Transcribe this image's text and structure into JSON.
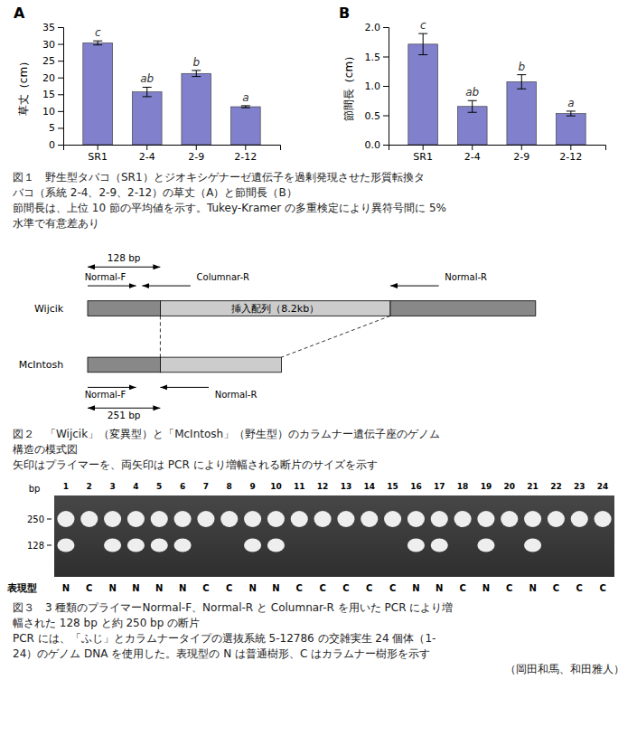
{
  "chart_data": [
    {
      "type": "bar",
      "title": "A",
      "ylabel": "草丈（cm）",
      "categories": [
        "SR1",
        "2-4",
        "2-9",
        "2-12"
      ],
      "values": [
        30.3,
        15.7,
        21.2,
        11.3
      ],
      "errors": [
        0.6,
        1.4,
        0.9,
        0.3
      ],
      "annotations": [
        "c",
        "ab",
        "b",
        "a"
      ],
      "color": "#8080cc",
      "ylim": [
        0,
        35
      ],
      "yticks": [
        0,
        5,
        10,
        15,
        20,
        25,
        30,
        35
      ],
      "caption": [
        "図１　野生型タバコ（SR1）とジオキシゲナーゼ遺伝子を過剰発現させた形質転換タ",
        "バコ（系統 2-4、2-9、2-12）の草丈（A）と節間長（B）",
        "節間長は、上位 10 節の平均値を示す。Tukey-Kramer の多重検定により異符号間に 5%",
        "水準で有意差あり"
      ]
    },
    {
      "type": "bar",
      "title": "B",
      "ylabel": "節間長（cm）",
      "categories": [
        "SR1",
        "2-4",
        "2-9",
        "2-12"
      ],
      "values": [
        1.71,
        0.65,
        1.07,
        0.53
      ],
      "errors": [
        0.18,
        0.1,
        0.12,
        0.04
      ],
      "annotations": [
        "c",
        "ab",
        "b",
        "a"
      ],
      "color": "#8080cc",
      "ylim": [
        0,
        2.0
      ],
      "yticks": [
        {
          "value": 0,
          "label": "0.0"
        },
        0.5,
        {
          "value": 1.0,
          "label": "1.0"
        },
        1.5,
        {
          "value": 2.0,
          "label": "2.0"
        }
      ]
    },
    {
      "type": "diagram",
      "rows": [
        "Wijcik",
        "McIntosh"
      ],
      "annotations": [
        "挿入配列（8.2kb）"
      ],
      "primers": [
        "Normal-F",
        "Columnar-R",
        "Normal-R"
      ],
      "fragments": [
        "128 bp",
        "251 bp"
      ],
      "colors": [
        "#888888",
        "#cccccc"
      ],
      "caption": [
        "図２　「Wijcik」（変異型）と「McIntosh」（野生型）のカラムナー遺伝子座のゲノム",
        "構造の模式図",
        "矢印はプライマーを、両矢印は PCR により増幅される断片のサイズを示す"
      ]
    },
    {
      "type": "gel",
      "categories": [
        "1",
        "2",
        "3",
        "4",
        "5",
        "6",
        "7",
        "8",
        "9",
        "10",
        "11",
        "12",
        "13",
        "14",
        "15",
        "16",
        "17",
        "18",
        "19",
        "20",
        "21",
        "22",
        "23",
        "24"
      ],
      "phenotypes": [
        "N",
        "C",
        "N",
        "N",
        "N",
        "N",
        "C",
        "C",
        "N",
        "N",
        "C",
        "C",
        "C",
        "C",
        "C",
        "N",
        "N",
        "C",
        "N",
        "C",
        "N",
        "C",
        "C",
        "C"
      ],
      "xlabel": "表現型",
      "ylabel": "bp",
      "yticks": [
        250,
        128
      ],
      "bands": [
        {
          "phenotype": "N",
          "sizes": [
            250,
            128
          ]
        },
        {
          "phenotype": "C",
          "sizes": [
            250
          ]
        }
      ],
      "caption": [
        "図３　3 種類のプライマーNormal-F、Normal-R と Columnar-R を用いた PCR により増",
        "幅された 128 bp と約 250 bp の断片",
        "PCR には、「ふじ」とカラムナータイプの選抜系統 5-12786 の交雑実生 24 個体（1-",
        "24）のゲノム DNA を使用した。表現型の N は普通樹形、C はカラムナー樹形を示す",
        "（岡田和馬、和田雅人）"
      ]
    }
  ]
}
